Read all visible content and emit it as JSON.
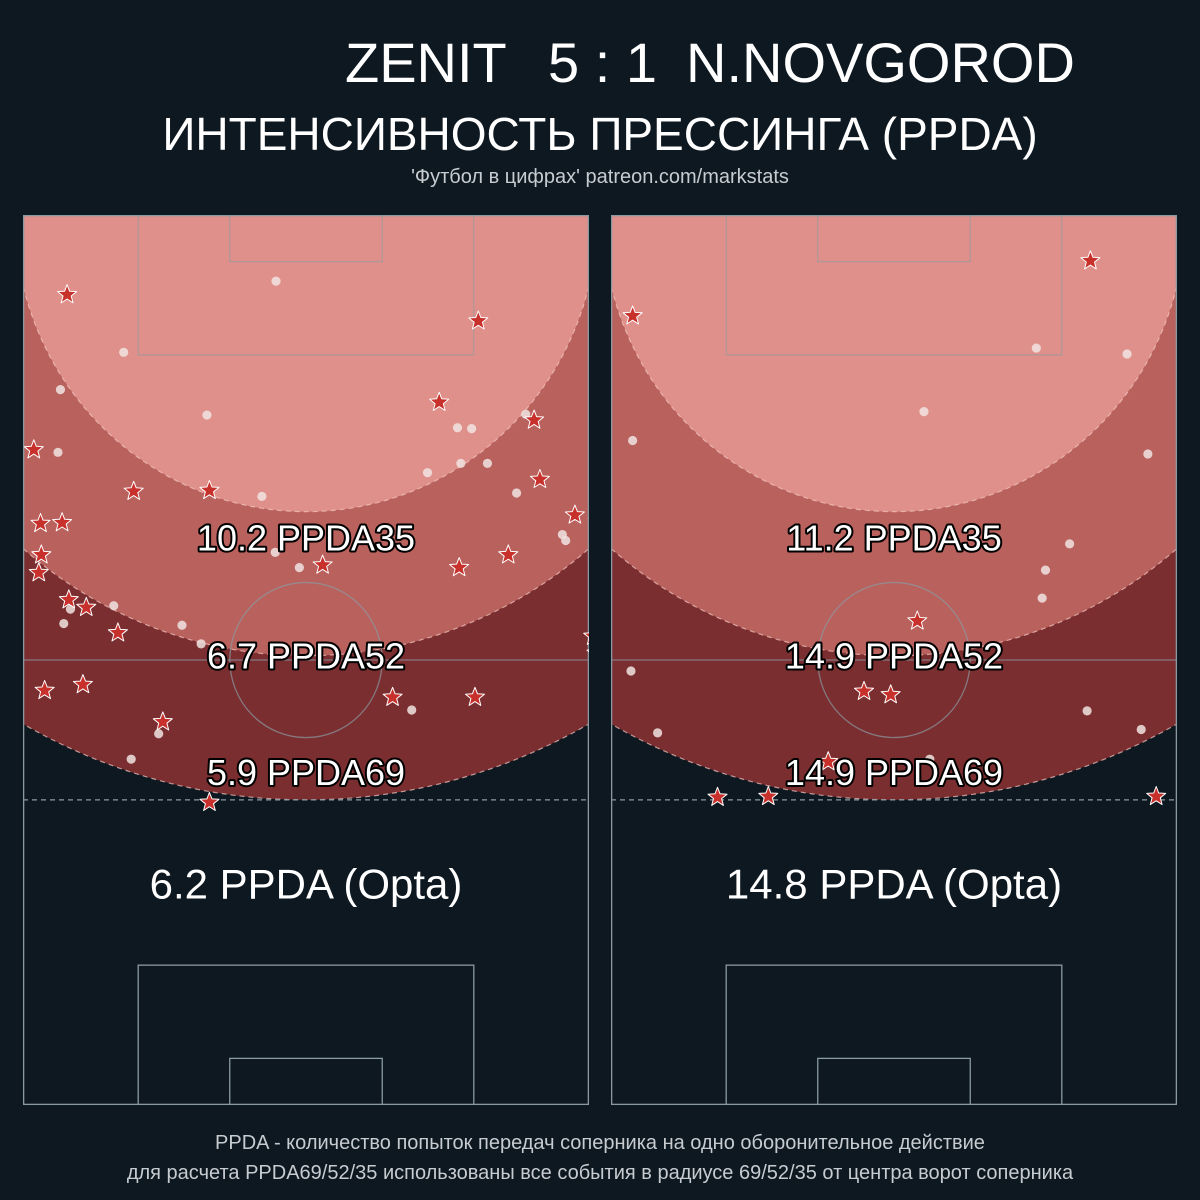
{
  "header": {
    "home_team": "ZENIT",
    "score": "5 : 1",
    "away_team": "N.NOVGOROD",
    "subtitle": "ИНТЕНСИВНОСТЬ ПРЕССИНГА (PPDA)",
    "credit": "'Футбол в цифрах' patreon.com/markstats"
  },
  "footnote": {
    "line1": "PPDA - количество попыток передач соперника на одно оборонительное действие",
    "line2": "для расчета PPDA69/52/35 использованы все события в радиусе 69/52/35 от центра ворот соперника"
  },
  "colors": {
    "background": "#0e1820",
    "zone_35": "#e0908a",
    "zone_52": "#b9615d",
    "zone_69": "#7b2e30",
    "star": "#c8302c",
    "dot": "#f0e4e2",
    "lines": "#8a9aa2"
  },
  "chart_data": [
    {
      "type": "scatter",
      "team": "ZENIT",
      "x_range": [
        0,
        68
      ],
      "y_range": [
        0,
        105
      ],
      "ppda_labels": {
        "r35": "10.2 PPDA35",
        "r52": "6.7 PPDA52",
        "r69": "5.9 PPDA69",
        "opta": "6.2 PPDA (Opta)"
      },
      "stars": [
        [
          5.3,
          95.6
        ],
        [
          54.7,
          92.5
        ],
        [
          50,
          82.9
        ],
        [
          61.4,
          80.8
        ],
        [
          1.3,
          77.3
        ],
        [
          13.3,
          72.4
        ],
        [
          22.4,
          72.5
        ],
        [
          62.1,
          73.8
        ],
        [
          2.1,
          68.6
        ],
        [
          4.7,
          68.7
        ],
        [
          66.3,
          69.6
        ],
        [
          2.2,
          64.9
        ],
        [
          1.9,
          62.8
        ],
        [
          36,
          63.7
        ],
        [
          52.4,
          63.4
        ],
        [
          58.3,
          64.9
        ],
        [
          5.5,
          59.6
        ],
        [
          7.6,
          58.7
        ],
        [
          11.4,
          55.7
        ],
        [
          68.5,
          55.3
        ],
        [
          68.9,
          53.3
        ],
        [
          2.6,
          48.9
        ],
        [
          7.2,
          49.6
        ],
        [
          44.4,
          48.1
        ],
        [
          54.3,
          48.1
        ],
        [
          16.8,
          45.2
        ],
        [
          22.4,
          35.7
        ]
      ],
      "dots": [
        [
          30.4,
          97.2
        ],
        [
          12.1,
          88.8
        ],
        [
          4.5,
          84.4
        ],
        [
          22.1,
          81.4
        ],
        [
          60.4,
          81.5
        ],
        [
          52.2,
          79.9
        ],
        [
          53.9,
          79.8
        ],
        [
          4.2,
          77
        ],
        [
          48.6,
          74.6
        ],
        [
          52.6,
          75.7
        ],
        [
          55.8,
          75.7
        ],
        [
          28.7,
          71.8
        ],
        [
          59.3,
          72.2
        ],
        [
          64.8,
          67.3
        ],
        [
          65.2,
          66.6
        ],
        [
          30.3,
          65.2
        ],
        [
          33.2,
          63.4
        ],
        [
          5.7,
          58.5
        ],
        [
          10.9,
          58.9
        ],
        [
          19.1,
          56.6
        ],
        [
          4.9,
          56.8
        ],
        [
          21.4,
          54.4
        ],
        [
          46.7,
          46.6
        ],
        [
          16.3,
          43.8
        ],
        [
          13,
          40.8
        ]
      ]
    },
    {
      "type": "scatter",
      "team": "N.NOVGOROD",
      "x_range": [
        0,
        68
      ],
      "y_range": [
        0,
        105
      ],
      "ppda_labels": {
        "r35": "11.2 PPDA35",
        "r52": "14.9 PPDA52",
        "r69": "14.9 PPDA69",
        "opta": "14.8 PPDA (Opta)"
      },
      "stars": [
        [
          57.6,
          99.6
        ],
        [
          2.6,
          93.1
        ],
        [
          36.8,
          57.1
        ],
        [
          30.4,
          48.8
        ],
        [
          33.6,
          48.4
        ],
        [
          26.1,
          40.5
        ],
        [
          12.8,
          36.3
        ],
        [
          18.9,
          36.4
        ],
        [
          65.5,
          36.4
        ]
      ],
      "dots": [
        [
          51.1,
          89.3
        ],
        [
          62,
          88.6
        ],
        [
          37.6,
          81.8
        ],
        [
          2.6,
          78.4
        ],
        [
          64.5,
          76.8
        ],
        [
          55.1,
          66.2
        ],
        [
          52.2,
          63.1
        ],
        [
          51.8,
          59.8
        ],
        [
          2.4,
          51.2
        ],
        [
          5.6,
          43.9
        ],
        [
          57.2,
          46.5
        ],
        [
          63.7,
          44.3
        ],
        [
          38.3,
          40.8
        ]
      ]
    }
  ]
}
